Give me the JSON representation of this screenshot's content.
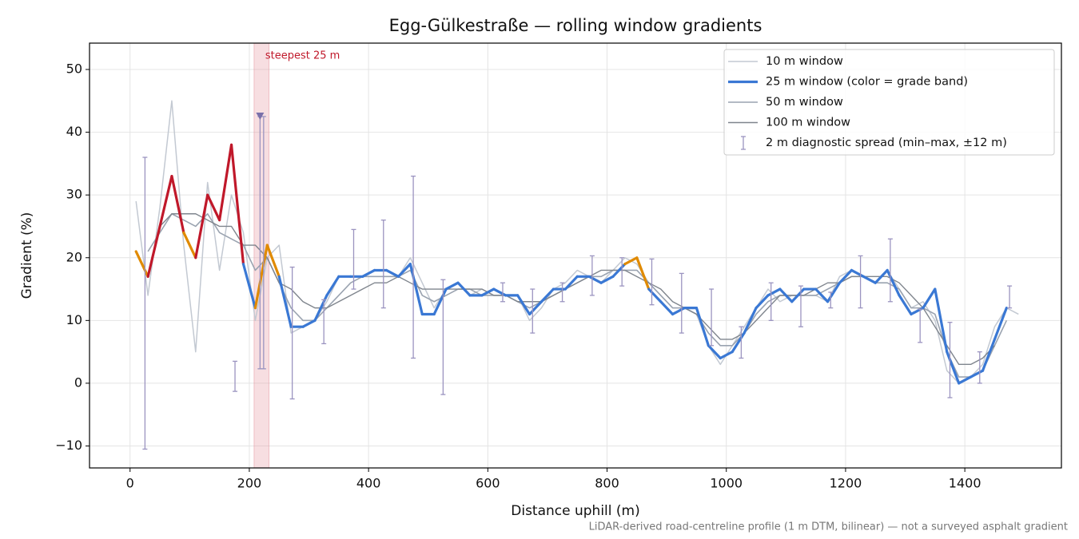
{
  "chart_data": {
    "type": "line",
    "title": "Egg-Gülkestraße — rolling window gradients",
    "x_label": "Distance uphill (m)",
    "y_label": "Gradient (%)",
    "footnote": "LiDAR-derived road-centreline profile (1 m DTM, bilinear) — not a surveyed asphalt gradient",
    "xlim": [
      -68,
      1562
    ],
    "ylim": [
      -13.5,
      54.2
    ],
    "xticks": [
      0,
      200,
      400,
      600,
      800,
      1000,
      1200,
      1400
    ],
    "yticks": [
      {
        "value": -10,
        "label": "−10"
      },
      0,
      10,
      20,
      30,
      40,
      50
    ],
    "grid": true,
    "legend_position": "upper right",
    "x": [
      10,
      30,
      50,
      70,
      90,
      110,
      130,
      150,
      170,
      190,
      210,
      230,
      250,
      270,
      290,
      310,
      330,
      350,
      370,
      390,
      410,
      430,
      450,
      470,
      490,
      510,
      530,
      550,
      570,
      590,
      610,
      630,
      650,
      670,
      690,
      710,
      730,
      750,
      770,
      790,
      810,
      830,
      850,
      870,
      890,
      910,
      930,
      950,
      970,
      990,
      1010,
      1030,
      1050,
      1070,
      1090,
      1110,
      1130,
      1150,
      1170,
      1190,
      1210,
      1230,
      1250,
      1270,
      1290,
      1310,
      1330,
      1350,
      1370,
      1390,
      1410,
      1430,
      1450,
      1470,
      1490
    ],
    "series": [
      {
        "name": "10 m window",
        "color": "#c3c9d2",
        "values": [
          29,
          14,
          28,
          45,
          22,
          5,
          32,
          18,
          30,
          24,
          10,
          20,
          22,
          8,
          9,
          10,
          13,
          17,
          17,
          17,
          18,
          18,
          17,
          20,
          16,
          12,
          15,
          16,
          14,
          15,
          14,
          14,
          14,
          10,
          12,
          15,
          16,
          18,
          17,
          16,
          18,
          20,
          19,
          16,
          14,
          12,
          12,
          11,
          6,
          3,
          6,
          9,
          12,
          15,
          13,
          14,
          14,
          14,
          13,
          17,
          18,
          17,
          16,
          18,
          15,
          12,
          13,
          10,
          2,
          0,
          1,
          3,
          9,
          12,
          11
        ]
      },
      {
        "name": "25 m window (color = grade band)",
        "color": "#3a78d4",
        "band_thresholds": [
          20,
          25
        ],
        "band_colors": [
          "#3a78d4",
          "#e08a00",
          "#c0182a"
        ],
        "values": [
          21,
          17,
          25,
          33,
          24,
          20,
          30,
          26,
          38,
          19,
          12,
          22,
          17,
          9,
          9,
          10,
          14,
          17,
          17,
          17,
          18,
          18,
          17,
          19,
          11,
          11,
          15,
          16,
          14,
          14,
          15,
          14,
          14,
          11,
          13,
          15,
          15,
          17,
          17,
          16,
          17,
          19,
          20,
          15,
          13,
          11,
          12,
          12,
          6,
          4,
          5,
          8,
          12,
          14,
          15,
          13,
          15,
          15,
          13,
          16,
          18,
          17,
          16,
          18,
          14,
          11,
          12,
          15,
          5,
          0,
          1,
          2,
          7,
          12,
          null
        ]
      },
      {
        "name": "50 m window",
        "color": "#9aa3b0",
        "values": [
          null,
          21,
          24,
          27,
          26,
          25,
          27,
          24,
          23,
          22,
          18,
          20,
          16,
          12,
          10,
          10,
          12,
          14,
          16,
          17,
          17,
          17,
          17,
          18,
          14,
          13,
          14,
          15,
          15,
          14,
          14,
          14,
          13,
          12,
          13,
          14,
          15,
          16,
          17,
          17,
          18,
          18,
          18,
          16,
          14,
          12,
          12,
          11,
          8,
          6,
          6,
          8,
          11,
          13,
          14,
          14,
          14,
          14,
          15,
          16,
          17,
          17,
          16,
          16,
          15,
          12,
          12,
          11,
          5,
          1,
          1,
          2,
          6,
          10,
          null
        ]
      },
      {
        "name": "100 m window",
        "color": "#7f858d",
        "values": [
          null,
          null,
          25,
          27,
          27,
          27,
          26,
          25,
          25,
          22,
          22,
          20,
          16,
          15,
          13,
          12,
          12,
          13,
          14,
          15,
          16,
          16,
          17,
          16,
          15,
          15,
          15,
          15,
          15,
          15,
          14,
          14,
          13,
          13,
          13,
          14,
          15,
          16,
          17,
          18,
          18,
          18,
          17,
          16,
          15,
          13,
          12,
          11,
          9,
          7,
          7,
          8,
          10,
          12,
          14,
          14,
          14,
          15,
          16,
          16,
          17,
          17,
          17,
          17,
          16,
          14,
          12,
          9,
          6,
          3,
          3,
          4,
          6,
          null,
          null
        ]
      }
    ],
    "spread": {
      "name": "2 m diagnostic spread (min–max, ±12 m)",
      "color": "#9b94c0",
      "x": [
        25,
        176,
        218,
        224,
        272,
        325,
        375,
        425,
        475,
        525,
        625,
        675,
        725,
        775,
        825,
        875,
        925,
        975,
        1025,
        1075,
        1125,
        1175,
        1225,
        1275,
        1325,
        1375,
        1425,
        1475
      ],
      "low": [
        -10.5,
        -1.3,
        2.3,
        2.3,
        -2.5,
        6.3,
        15,
        12,
        4,
        -1.8,
        13,
        8,
        13,
        14,
        15.5,
        12.5,
        8,
        6,
        4,
        10,
        9,
        12,
        12,
        13,
        6.5,
        -2.3,
        0,
        12
      ],
      "high": [
        36,
        3.5,
        42.5,
        42.5,
        18.5,
        13.3,
        24.5,
        26,
        33,
        16.5,
        16,
        15,
        16,
        20.3,
        20,
        19.8,
        17.5,
        15,
        9,
        16,
        15.5,
        14.5,
        20.3,
        23,
        11.8,
        9.7,
        5,
        15.5
      ]
    },
    "highlight": {
      "label": "steepest 25 m",
      "x_range": [
        208,
        233
      ],
      "color": "#e8a0a8"
    },
    "steepest_marker": {
      "x": 218,
      "value": 42.5,
      "color": "#7a70aa"
    }
  }
}
